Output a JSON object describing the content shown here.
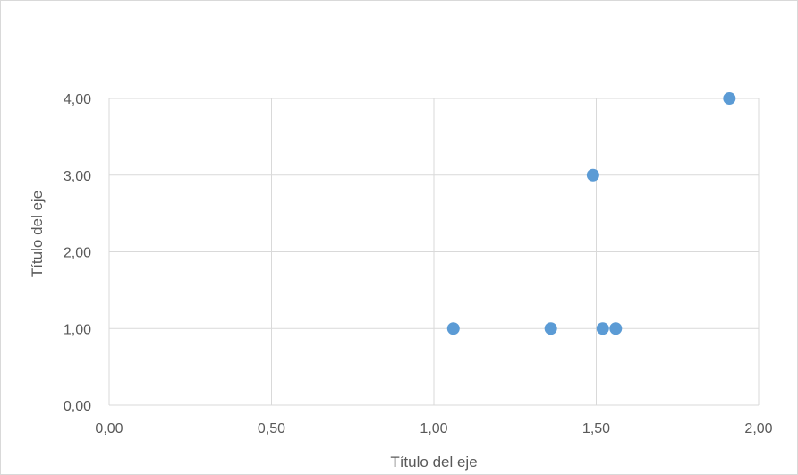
{
  "chart_data": {
    "type": "scatter",
    "title": "",
    "xlabel": "Título del eje",
    "ylabel": "Título del eje",
    "xlim": [
      0,
      2
    ],
    "ylim": [
      0,
      4
    ],
    "x_ticks": [
      "0,00",
      "0,50",
      "1,00",
      "1,50",
      "2,00"
    ],
    "y_ticks": [
      "0,00",
      "1,00",
      "2,00",
      "3,00",
      "4,00"
    ],
    "grid": true,
    "legend": "none",
    "color": "#5b9bd5",
    "series": [
      {
        "points": [
          {
            "x": 1.06,
            "y": 1
          },
          {
            "x": 1.36,
            "y": 1
          },
          {
            "x": 1.52,
            "y": 1
          },
          {
            "x": 1.56,
            "y": 1
          },
          {
            "x": 1.49,
            "y": 3
          },
          {
            "x": 1.91,
            "y": 4
          }
        ]
      }
    ]
  }
}
